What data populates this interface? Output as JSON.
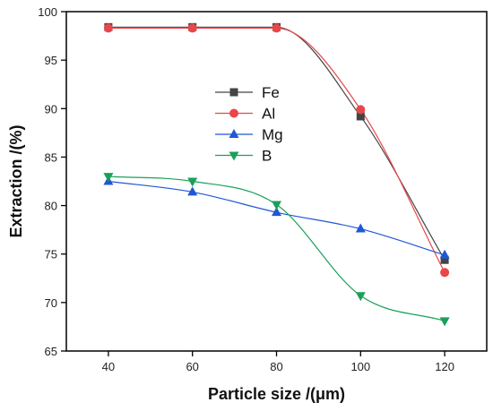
{
  "chart_data": {
    "type": "line",
    "xlabel": "Particle size /(μm)",
    "ylabel": "Extraction /(%)",
    "xlim": [
      30,
      130
    ],
    "ylim": [
      65,
      100
    ],
    "xticks": [
      40,
      60,
      80,
      100,
      120
    ],
    "yticks": [
      65,
      70,
      75,
      80,
      85,
      90,
      95,
      100
    ],
    "grid": false,
    "legend_position": "center-left",
    "series": [
      {
        "name": "Fe",
        "color": "#444444",
        "marker": "square",
        "x": [
          40,
          60,
          80,
          100,
          120
        ],
        "y": [
          98.4,
          98.4,
          98.4,
          89.2,
          74.4
        ]
      },
      {
        "name": "Al",
        "color": "#e8474a",
        "marker": "circle",
        "x": [
          40,
          60,
          80,
          100,
          120
        ],
        "y": [
          98.3,
          98.3,
          98.3,
          89.9,
          73.1
        ]
      },
      {
        "name": "Mg",
        "color": "#1f57d6",
        "marker": "triangle-up",
        "x": [
          40,
          60,
          80,
          100,
          120
        ],
        "y": [
          82.5,
          81.4,
          79.3,
          77.6,
          74.9
        ]
      },
      {
        "name": "B",
        "color": "#1aa05a",
        "marker": "triangle-down",
        "x": [
          40,
          60,
          80,
          100,
          120
        ],
        "y": [
          83.0,
          82.5,
          80.1,
          70.7,
          68.1
        ]
      }
    ]
  }
}
